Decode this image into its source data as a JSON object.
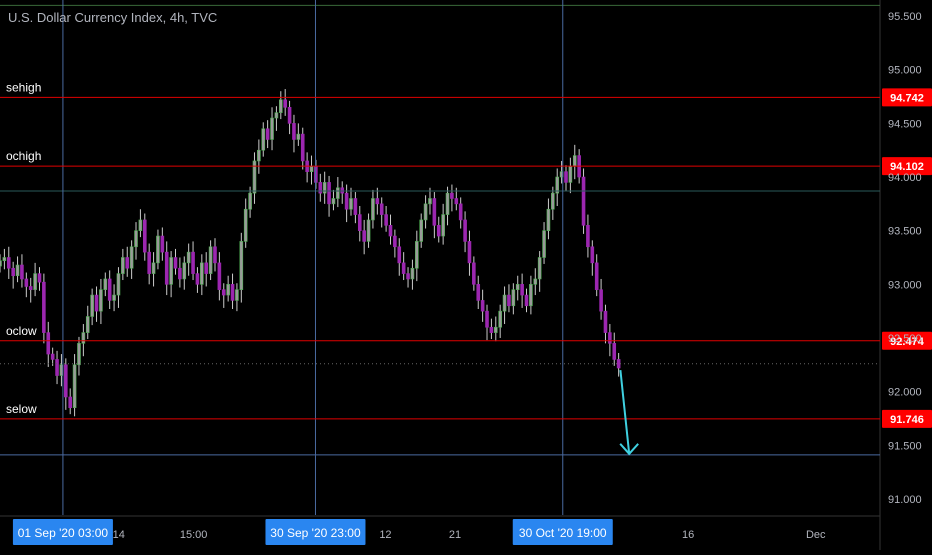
{
  "title": "U.S. Dollar Currency Index, 4h, TVC",
  "colors": {
    "background": "#000000",
    "axis_text": "#b2b5be",
    "up_candle": "#4caf50",
    "down_candle": "#9c27b0",
    "hline": "#e00000",
    "hline_label_bg": "#ff0000",
    "vline": "#4a6aa0",
    "crosshair_label_bg": "#2a86f0",
    "arrow": "#3fd0e0",
    "teal_line": "#2a5a5a"
  },
  "chart_data": {
    "type": "candlestick",
    "ylim": [
      90.85,
      95.65
    ],
    "y_ticks": [
      "95.500",
      "95.000",
      "94.500",
      "94.000",
      "93.500",
      "93.000",
      "92.500",
      "92.000",
      "91.500",
      "91.000"
    ],
    "y_tick_values": [
      95.5,
      95.0,
      94.5,
      94.0,
      93.5,
      93.0,
      92.5,
      92.0,
      91.5,
      91.0
    ],
    "x_ticks": [
      {
        "label": "14",
        "idx": 0.135
      },
      {
        "label": "15:00",
        "idx": 0.22
      },
      {
        "label": "12",
        "idx": 0.438
      },
      {
        "label": "21",
        "idx": 0.517
      },
      {
        "label": "16",
        "idx": 0.782
      },
      {
        "label": "Dec",
        "idx": 0.927
      }
    ],
    "date_markers": [
      {
        "label": "01 Sep '20   03:00",
        "idx": 0.0715
      },
      {
        "label": "30 Sep '20   23:00",
        "idx": 0.3585
      },
      {
        "label": "30 Oct '20   19:00",
        "idx": 0.6395
      }
    ],
    "levels": [
      {
        "name": "sehigh",
        "value": 94.742,
        "label": "94.742"
      },
      {
        "name": "ochigh",
        "value": 94.102,
        "label": "94.102"
      },
      {
        "name": "oclow",
        "value": 92.474,
        "label": "92.474"
      },
      {
        "name": "selow",
        "value": 91.746,
        "label": "91.746"
      }
    ],
    "top_line": 95.6,
    "teal_line": 93.87,
    "blue_line": 91.41,
    "dotted_line": 92.26,
    "arrow": {
      "from_idx": 0.705,
      "from": 92.2,
      "to_idx": 0.715,
      "to": 91.42
    },
    "closes": [
      93.22,
      93.25,
      93.15,
      93.08,
      93.18,
      93.05,
      92.98,
      92.95,
      93.1,
      93.02,
      92.55,
      92.35,
      92.3,
      92.15,
      92.25,
      91.95,
      91.85,
      92.25,
      92.45,
      92.55,
      92.7,
      92.9,
      92.75,
      92.95,
      93.05,
      92.85,
      92.9,
      93.1,
      93.25,
      93.15,
      93.35,
      93.5,
      93.6,
      93.3,
      93.1,
      93.2,
      93.45,
      93.3,
      93.0,
      93.25,
      93.15,
      93.05,
      93.2,
      93.3,
      93.1,
      93.0,
      93.2,
      93.1,
      93.35,
      93.2,
      92.95,
      92.9,
      93.0,
      92.85,
      92.95,
      93.4,
      93.7,
      93.85,
      94.15,
      94.25,
      94.45,
      94.35,
      94.55,
      94.6,
      94.72,
      94.65,
      94.5,
      94.35,
      94.4,
      94.15,
      94.05,
      94.1,
      93.95,
      93.85,
      93.95,
      93.75,
      93.8,
      93.9,
      93.85,
      93.7,
      93.8,
      93.65,
      93.5,
      93.4,
      93.6,
      93.8,
      93.75,
      93.65,
      93.55,
      93.45,
      93.35,
      93.2,
      93.1,
      93.05,
      93.15,
      93.4,
      93.6,
      93.75,
      93.8,
      93.55,
      93.45,
      93.65,
      93.85,
      93.8,
      93.75,
      93.6,
      93.4,
      93.2,
      93.0,
      92.85,
      92.75,
      92.6,
      92.55,
      92.6,
      92.75,
      92.9,
      92.8,
      92.95,
      93.0,
      92.9,
      92.8,
      93.0,
      93.05,
      93.25,
      93.5,
      93.7,
      93.85,
      94.0,
      94.05,
      93.95,
      94.1,
      94.2,
      94.0,
      93.55,
      93.35,
      93.2,
      92.95,
      92.75,
      92.55,
      92.45,
      92.3,
      92.22
    ],
    "up_idx_bias": 0.5
  }
}
